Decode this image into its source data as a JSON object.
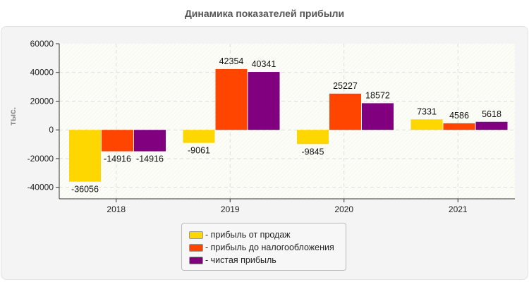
{
  "chart_data": {
    "type": "bar",
    "title": "Динамика показателей прибыли",
    "ylabel": "тыс.",
    "xlabel": "",
    "categories": [
      "2018",
      "2019",
      "2020",
      "2021"
    ],
    "ylim": [
      -48000,
      60000
    ],
    "yticks": [
      60000,
      40000,
      20000,
      0,
      -20000,
      -40000
    ],
    "grid": true,
    "legend_position": "bottom",
    "series": [
      {
        "name": "- прибыль от продаж",
        "color": "#FFD700",
        "values": [
          -36056,
          -9061,
          -9845,
          7331
        ]
      },
      {
        "name": "- прибыль до налогообложения",
        "color": "#FF4500",
        "values": [
          -14916,
          42354,
          25227,
          4586
        ]
      },
      {
        "name": "- чистая прибыль",
        "color": "#800080",
        "values": [
          -14916,
          40341,
          18572,
          5618
        ]
      }
    ]
  }
}
